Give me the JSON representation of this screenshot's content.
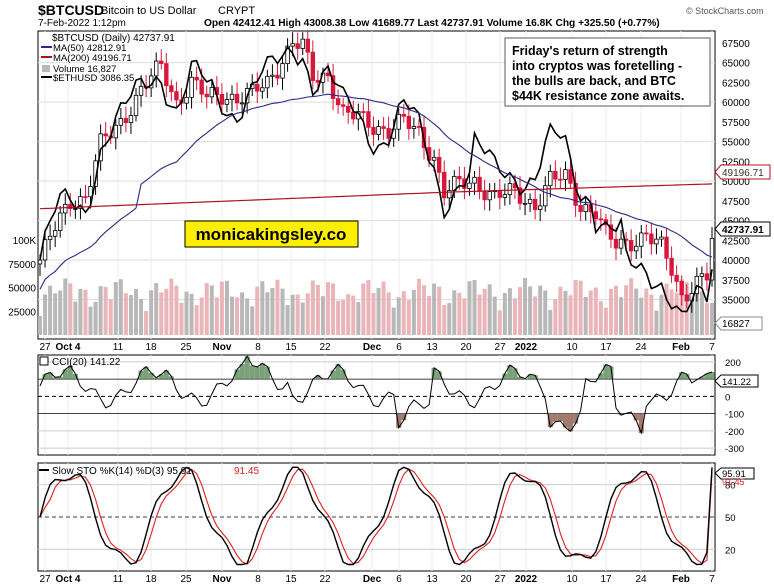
{
  "header": {
    "symbol": "$BTCUSD",
    "name": "Bitcoin to US Dollar",
    "exchange": "CRYPT",
    "date": "7-Feb-2022 1:12pm",
    "ohlc": "Open 42412.41  High 43008.38  Low 41689.77  Last 42737.91  Volume 16.8K  Chg +325.50 (+0.77%)",
    "copyright": "© StockCharts.com"
  },
  "legend": [
    {
      "text": "$BTCUSD (Daily) 42737.91",
      "color": "#000000"
    },
    {
      "text": "MA(50) 42812.91",
      "color": "#2a2a8a"
    },
    {
      "text": "MA(200) 49196.71",
      "color": "#b01020"
    },
    {
      "text": "Volume 16,827",
      "color": "#444444"
    },
    {
      "text": "$ETHUSD 3086.35",
      "color": "#000000"
    }
  ],
  "annotation": "Friday's return of strength into cryptos was foretelling - the bulls are back, and BTC $44K resistance zone awaits.",
  "annotation_lines": [
    "Friday's return of strength",
    "into cryptos was foretelling -",
    "the bulls are back, and BTC",
    "$44K resistance zone awaits."
  ],
  "watermark": "monicakingsley.co",
  "colors": {
    "up": "#000000",
    "down": "#d8173c",
    "ma50": "#2a2a8a",
    "ma200": "#b01020",
    "volUp": "#b8b8b8",
    "volDown": "#eab4b8",
    "cciFill": "#5a8a5a",
    "cciFillNeg": "#8a5a4a",
    "stoD": "#e02020",
    "highlight": "#ffee00"
  },
  "chart_data": [
    {
      "type": "candlestick",
      "title": "$BTCUSD (Daily)",
      "y_ticks": [
        35000,
        40000,
        45000,
        50000,
        55000,
        60000,
        65000
      ],
      "y_tick_labels": [
        "35000",
        "40000",
        "45000",
        "50000",
        "55000",
        "60000",
        "65000"
      ],
      "extra_y_labels": [
        "67500",
        "62500",
        "57500",
        "52500",
        "47500",
        "42500",
        "37500"
      ],
      "ylim": [
        30000,
        69000
      ],
      "x_labels": [
        "27",
        "Oct 4",
        "11",
        "18",
        "25",
        "Nov",
        "8",
        "15",
        "22",
        "Dec",
        "6",
        "13",
        "20",
        "27",
        "2022",
        "10",
        "17",
        "24",
        "Feb",
        "7"
      ],
      "last_price_label": "42737.91",
      "ma200_label": "49196.71",
      "volume_label": "16827",
      "volume_axis_labels": [
        "100K",
        "75000",
        "50000",
        "25000"
      ],
      "ma50_last": 42812.91,
      "ma200_last": 49196.71,
      "volume_last": 16827,
      "ethusd_last": 3086.35
    },
    {
      "type": "line",
      "title": "CCI(20) 141.22",
      "y_ticks": [
        200,
        100,
        0,
        -100,
        -200,
        -300
      ],
      "y_tick_labels": [
        "200",
        "100",
        "0",
        "-100",
        "-200",
        "-300"
      ],
      "ylim": [
        -340,
        240
      ],
      "last_label": "141.22",
      "last_value": 141.22
    },
    {
      "type": "line",
      "title_k": "Slow STO %K(14) %D(3) 95.91,",
      "title_d": "91.45",
      "y_ticks": [
        80,
        50,
        20
      ],
      "y_tick_labels": [
        "80",
        "50",
        "20"
      ],
      "ylim": [
        0,
        100
      ],
      "k_label": "95.91",
      "d_label": "91.45",
      "k_last": 95.91,
      "d_last": 91.45
    }
  ]
}
